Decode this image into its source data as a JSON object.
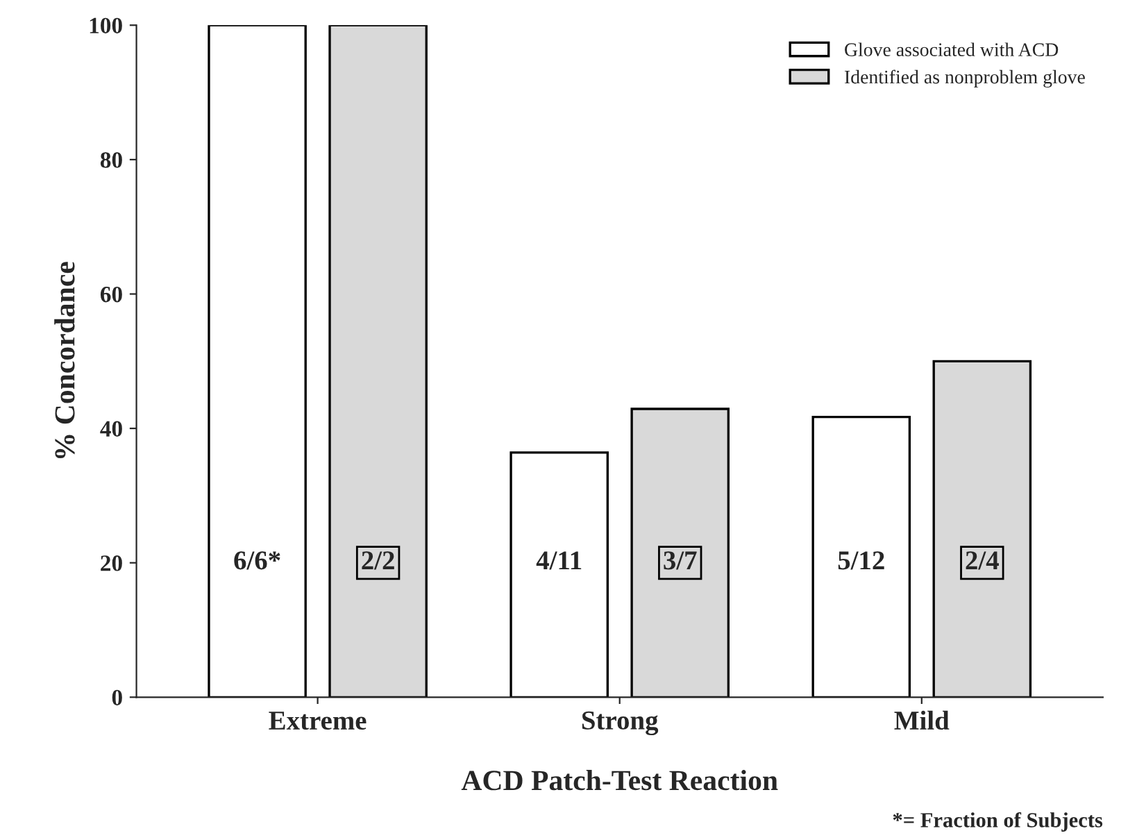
{
  "chart_data": {
    "type": "bar",
    "xlabel": "ACD Patch-Test Reaction",
    "ylabel": "% Concordance",
    "categories": [
      "Extreme",
      "Strong",
      "Mild"
    ],
    "series": [
      {
        "name": "Glove associated with ACD",
        "color": "#ffffff",
        "values": [
          100,
          36.4,
          41.7
        ]
      },
      {
        "name": "Identified as nonproblem glove",
        "color": "#d9d9d9",
        "values": [
          100,
          42.9,
          50
        ]
      }
    ],
    "ylim": [
      0,
      100
    ],
    "yticks": [
      0,
      20,
      40,
      60,
      80,
      100
    ],
    "grid": false,
    "legend": "top right",
    "annotations": [
      "6/6*",
      "2/2",
      "4/11",
      "3/7",
      "5/12",
      "2/4",
      "*= Fraction of Subjects"
    ]
  }
}
